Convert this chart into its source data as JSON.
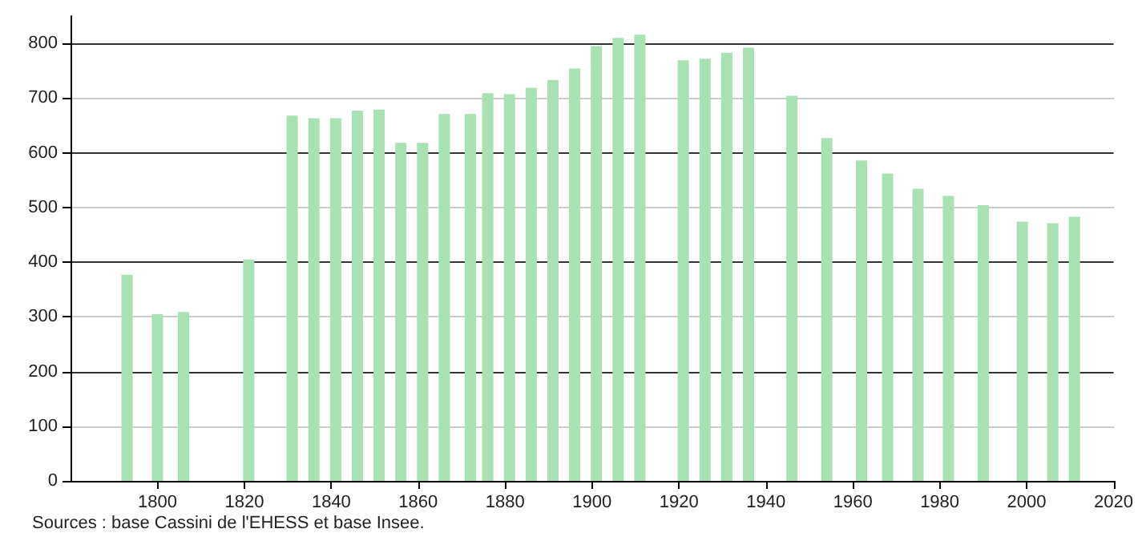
{
  "chart_data": {
    "type": "bar",
    "x": [
      1793,
      1800,
      1806,
      1821,
      1831,
      1836,
      1841,
      1846,
      1851,
      1856,
      1861,
      1866,
      1872,
      1876,
      1881,
      1886,
      1891,
      1896,
      1901,
      1906,
      1911,
      1921,
      1926,
      1931,
      1936,
      1946,
      1954,
      1962,
      1968,
      1975,
      1982,
      1990,
      1999,
      2006,
      2011
    ],
    "values": [
      377,
      305,
      309,
      405,
      668,
      663,
      663,
      677,
      679,
      618,
      618,
      671,
      671,
      709,
      707,
      719,
      733,
      754,
      795,
      810,
      816,
      769,
      772,
      783,
      792,
      704,
      627,
      586,
      562,
      534,
      521,
      504,
      474,
      471,
      483
    ],
    "color": "#a8e2b2",
    "xlim": [
      1780,
      2020
    ],
    "xticks": [
      1800,
      1820,
      1840,
      1860,
      1880,
      1900,
      1920,
      1940,
      1960,
      1980,
      2000,
      2020
    ],
    "ylim": [
      0,
      850
    ],
    "yticks": [
      0,
      100,
      200,
      300,
      400,
      500,
      600,
      700,
      800
    ],
    "grid": "y",
    "annotations": [
      "Sources : base Cassini de l'EHESS et base Insee."
    ]
  }
}
